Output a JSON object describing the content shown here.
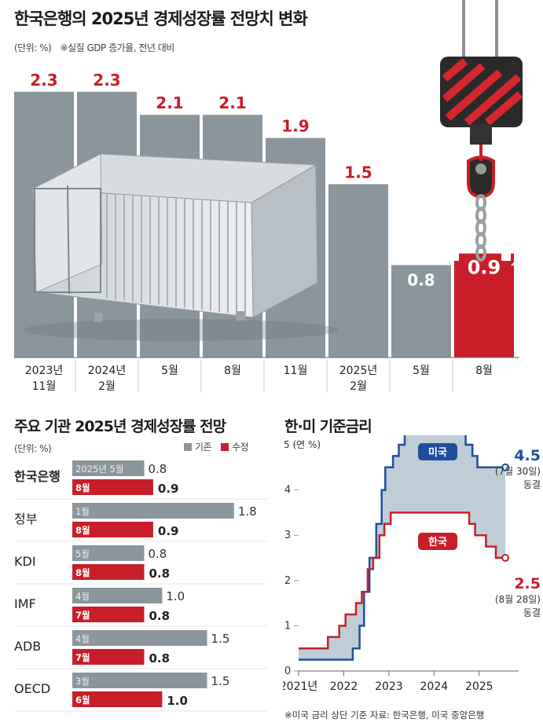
{
  "colors": {
    "bar_gray": "#8a959c",
    "bar_red": "#c81e2a",
    "value_red": "#c81e2a",
    "us_blue": "#1f4f9c",
    "kr_red": "#c81e2a",
    "fill_gap": "#bfcdd6"
  },
  "top": {
    "title": "한국은행의 2025년 경제성장률 전망치 변화",
    "unit_note": "(단위: %)",
    "sub_note": "※실질 GDP 증가율, 전년 대비",
    "illustration": [
      "shipping-container-icon",
      "crane-hook-icon",
      "up-arrow-icon"
    ]
  },
  "bottom_left": {
    "title": "주요 기관 2025년 경제성장률 전망",
    "unit_note": "(단위: %)",
    "legend_prior": "기존",
    "legend_revised": "수정"
  },
  "bottom_right": {
    "title": "한·미 기준금리",
    "y_unit": "5 (연 %)",
    "footnote": "※미국 금리 상단 기준   자료: 한국은행, 미국 중앙은행",
    "us_label": "미국",
    "kr_label": "한국",
    "us_end_value": "4.5",
    "us_end_date": "(7월 30일)",
    "us_end_status": "동결",
    "kr_end_value": "2.5",
    "kr_end_date": "(8월 28일)",
    "kr_end_status": "동결"
  },
  "chart_data": [
    {
      "type": "bar",
      "title": "한국은행의 2025년 경제성장률 전망치 변화",
      "ylabel": "(단위: %)",
      "categories": [
        [
          "2023년",
          "11월"
        ],
        [
          "2024년",
          "2월"
        ],
        [
          "5월"
        ],
        [
          "8월"
        ],
        [
          "11월"
        ],
        [
          "2025년",
          "2월"
        ],
        [
          "5월"
        ],
        [
          "8월"
        ]
      ],
      "values": [
        2.3,
        2.3,
        2.1,
        2.1,
        1.9,
        1.5,
        0.8,
        0.9
      ],
      "value_labels": [
        "2.3",
        "2.3",
        "2.1",
        "2.1",
        "1.9",
        "1.5",
        "0.8",
        "0.9"
      ],
      "highlight_index": 7,
      "ylim": [
        0,
        2.55
      ]
    },
    {
      "type": "bar",
      "orientation": "horizontal",
      "title": "주요 기관 2025년 경제성장률 전망",
      "ylabel": "(단위: %)",
      "xlim": [
        0,
        1.88
      ],
      "legend": [
        "기존",
        "수정"
      ],
      "institutions": [
        {
          "name": "한국은행",
          "bold": true,
          "prior_label": "2025년 5월",
          "prior": 0.8,
          "prior_text": "0.8",
          "revised_label": "8월",
          "revised": 0.9,
          "revised_text": "0.9"
        },
        {
          "name": "정부",
          "bold": false,
          "prior_label": "1월",
          "prior": 1.8,
          "prior_text": "1.8",
          "revised_label": "8월",
          "revised": 0.9,
          "revised_text": "0.9"
        },
        {
          "name": "KDI",
          "bold": false,
          "prior_label": "5월",
          "prior": 0.8,
          "prior_text": "0.8",
          "revised_label": "8월",
          "revised": 0.8,
          "revised_text": "0.8"
        },
        {
          "name": "IMF",
          "bold": false,
          "prior_label": "4월",
          "prior": 1.0,
          "prior_text": "1.0",
          "revised_label": "7월",
          "revised": 0.8,
          "revised_text": "0.8"
        },
        {
          "name": "ADB",
          "bold": false,
          "prior_label": "4월",
          "prior": 1.5,
          "prior_text": "1.5",
          "revised_label": "7월",
          "revised": 0.8,
          "revised_text": "0.8"
        },
        {
          "name": "OECD",
          "bold": false,
          "prior_label": "3월",
          "prior": 1.5,
          "prior_text": "1.5",
          "revised_label": "6월",
          "revised": 1.0,
          "revised_text": "1.0"
        }
      ]
    },
    {
      "type": "line",
      "step": true,
      "title": "한·미 기준금리",
      "ylabel": "5 (연 %)",
      "ylim": [
        0,
        5
      ],
      "yticks": [
        0,
        1,
        2,
        3,
        4,
        5
      ],
      "ytick_labels": [
        "0",
        "1",
        "2",
        "3",
        "4",
        ""
      ],
      "xlim": [
        2021.0,
        2025.7
      ],
      "xticks": [
        2021.0,
        2022.0,
        2023.0,
        2024.0,
        2025.0
      ],
      "xtick_labels": [
        "2021년",
        "2022",
        "2023",
        "2024",
        "2025"
      ],
      "series": [
        {
          "name": "미국",
          "points": [
            [
              2021.0,
              0.25
            ],
            [
              2022.2,
              0.25
            ],
            [
              2022.2,
              0.5
            ],
            [
              2022.35,
              0.5
            ],
            [
              2022.35,
              1.0
            ],
            [
              2022.45,
              1.0
            ],
            [
              2022.45,
              1.75
            ],
            [
              2022.57,
              1.75
            ],
            [
              2022.57,
              2.5
            ],
            [
              2022.72,
              2.5
            ],
            [
              2022.72,
              3.25
            ],
            [
              2022.84,
              3.25
            ],
            [
              2022.84,
              4.0
            ],
            [
              2022.92,
              4.0
            ],
            [
              2022.92,
              4.5
            ],
            [
              2023.09,
              4.5
            ],
            [
              2023.09,
              4.75
            ],
            [
              2023.22,
              4.75
            ],
            [
              2023.22,
              5.0
            ],
            [
              2023.35,
              5.0
            ],
            [
              2023.35,
              5.25
            ],
            [
              2023.58,
              5.25
            ],
            [
              2023.58,
              5.5
            ],
            [
              2024.7,
              5.5
            ],
            [
              2024.7,
              5.0
            ],
            [
              2024.85,
              5.0
            ],
            [
              2024.85,
              4.75
            ],
            [
              2024.96,
              4.75
            ],
            [
              2024.96,
              4.5
            ],
            [
              2025.58,
              4.5
            ]
          ]
        },
        {
          "name": "한국",
          "points": [
            [
              2021.0,
              0.5
            ],
            [
              2021.65,
              0.5
            ],
            [
              2021.65,
              0.75
            ],
            [
              2021.9,
              0.75
            ],
            [
              2021.9,
              1.0
            ],
            [
              2022.04,
              1.0
            ],
            [
              2022.04,
              1.25
            ],
            [
              2022.27,
              1.25
            ],
            [
              2022.27,
              1.5
            ],
            [
              2022.4,
              1.5
            ],
            [
              2022.4,
              1.75
            ],
            [
              2022.53,
              1.75
            ],
            [
              2022.53,
              2.25
            ],
            [
              2022.65,
              2.25
            ],
            [
              2022.65,
              2.5
            ],
            [
              2022.79,
              2.5
            ],
            [
              2022.79,
              3.0
            ],
            [
              2022.9,
              3.0
            ],
            [
              2022.9,
              3.25
            ],
            [
              2023.04,
              3.25
            ],
            [
              2023.04,
              3.5
            ],
            [
              2024.78,
              3.5
            ],
            [
              2024.78,
              3.25
            ],
            [
              2024.91,
              3.25
            ],
            [
              2024.91,
              3.0
            ],
            [
              2025.15,
              3.0
            ],
            [
              2025.15,
              2.75
            ],
            [
              2025.37,
              2.75
            ],
            [
              2025.37,
              2.5
            ],
            [
              2025.58,
              2.5
            ]
          ]
        }
      ]
    }
  ]
}
